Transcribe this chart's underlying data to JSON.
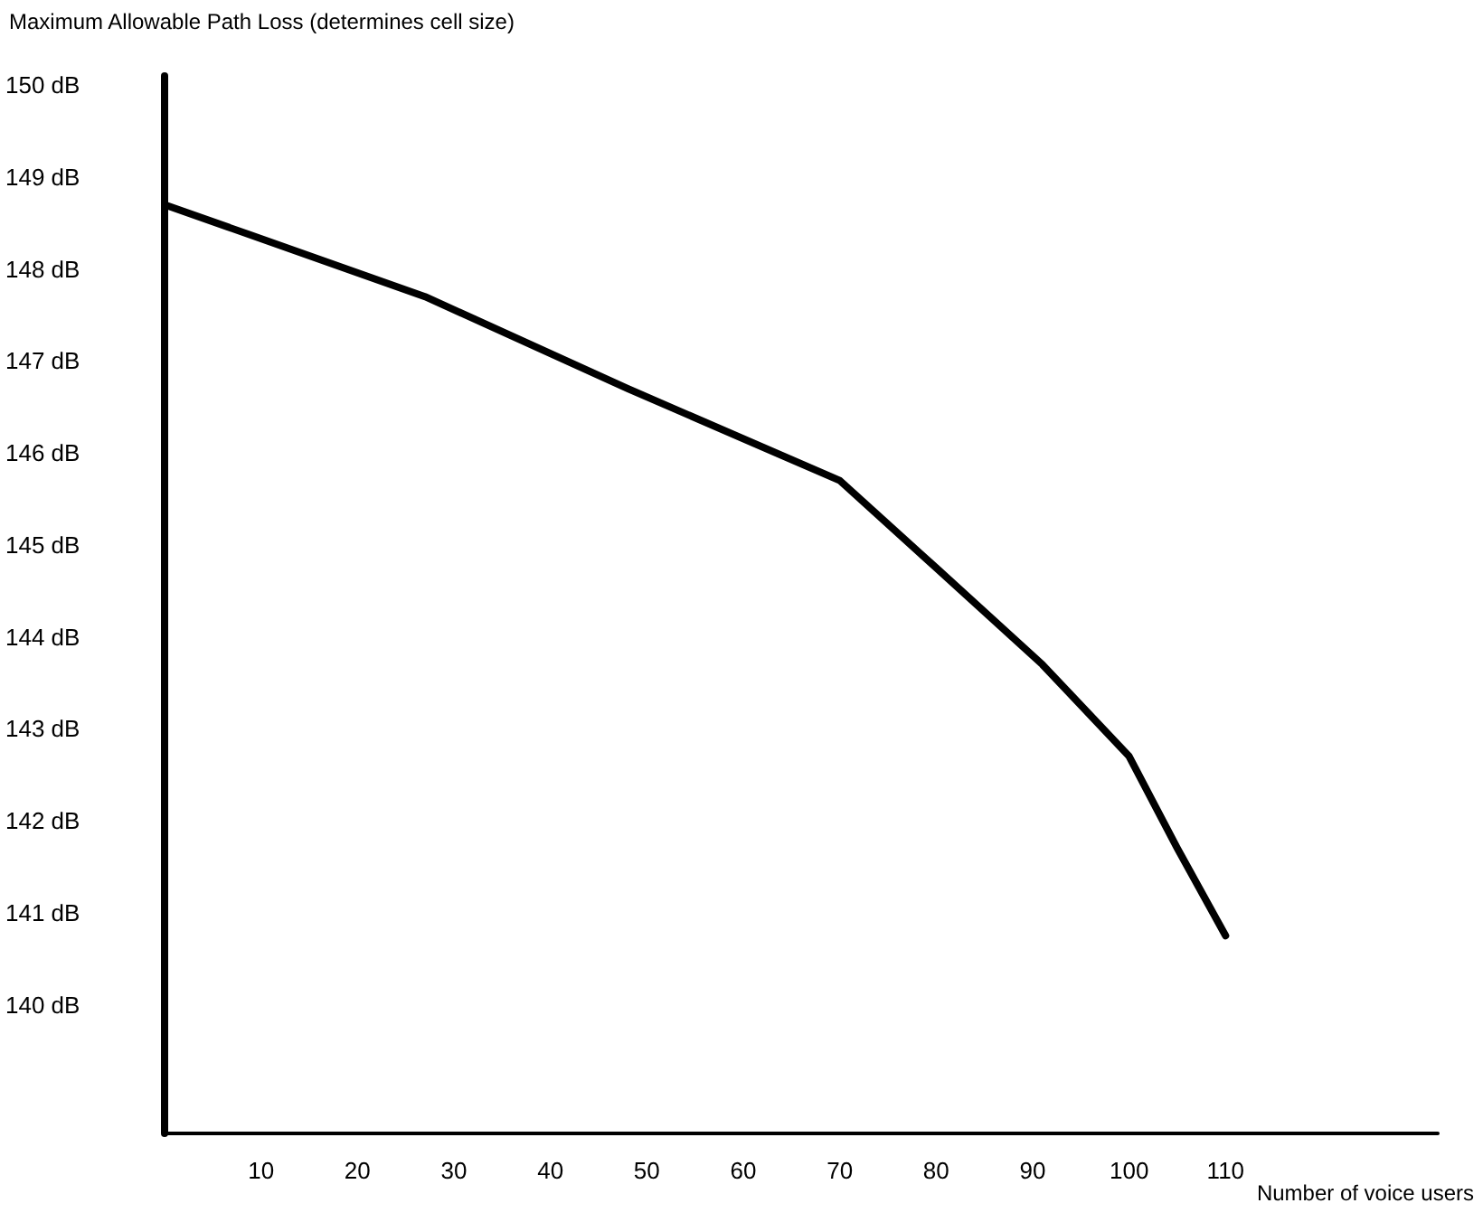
{
  "chart_data": {
    "type": "line",
    "ylabel": "Maximum Allowable Path Loss (determines cell size)",
    "xlabel": "Number of voice users",
    "x": [
      0,
      27,
      48,
      70,
      80,
      91,
      100,
      105,
      110
    ],
    "series": [
      {
        "color": "#000000",
        "values": [
          148.7,
          147.7,
          146.7,
          145.7,
          144.75,
          143.7,
          142.7,
          141.7,
          140.75
        ]
      }
    ],
    "xlim": [
      0,
      132
    ],
    "xticks": [
      10,
      20,
      30,
      40,
      50,
      60,
      70,
      80,
      90,
      100,
      110
    ],
    "ylim": [
      138.6,
      150.1
    ],
    "yticks": [
      {
        "value": 140,
        "label": "140 dB"
      },
      {
        "value": 141,
        "label": "141 dB"
      },
      {
        "value": 142,
        "label": "142 dB"
      },
      {
        "value": 143,
        "label": "143 dB"
      },
      {
        "value": 144,
        "label": "144 dB"
      },
      {
        "value": 145,
        "label": "145 dB"
      },
      {
        "value": 146,
        "label": "146 dB"
      },
      {
        "value": 147,
        "label": "147 dB"
      },
      {
        "value": 148,
        "label": "148 dB"
      },
      {
        "value": 149,
        "label": "149 dB"
      },
      {
        "value": 150,
        "label": "150 dB"
      }
    ],
    "grid": false,
    "marker": "none",
    "line_style": "solid"
  }
}
